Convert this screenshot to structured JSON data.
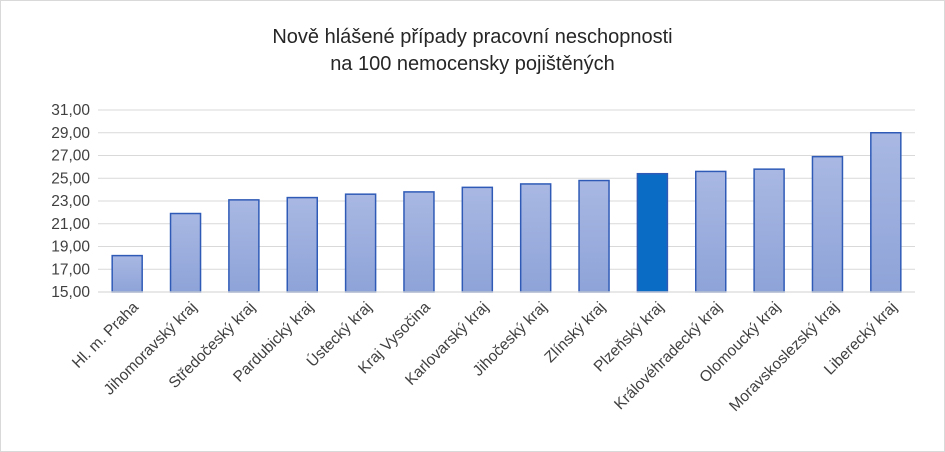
{
  "chart_data": {
    "type": "bar",
    "title": "Nově hlášené případy pracovní neschopnosti",
    "subtitle": "na 100 nemocensky pojištěných",
    "categories": [
      "Hl. m. Praha",
      "Jihomoravský kraj",
      "Středočeský kraj",
      "Pardubický kraj",
      "Ústecký kraj",
      "Kraj Vysočina",
      "Karlovarský kraj",
      "Jihočeský kraj",
      "Zlínský kraj",
      "Plzeňský kraj",
      "Královéhradecký kraj",
      "Olomoucký kraj",
      "Moravskoslezský kraj",
      "Liberecký kraj"
    ],
    "values": [
      18.2,
      21.9,
      23.1,
      23.3,
      23.6,
      23.8,
      24.2,
      24.5,
      24.8,
      25.4,
      25.6,
      25.8,
      26.9,
      29.0
    ],
    "ylim": [
      15,
      31
    ],
    "yticks": [
      "15,00",
      "17,00",
      "19,00",
      "21,00",
      "23,00",
      "25,00",
      "27,00",
      "29,00",
      "31,00"
    ],
    "grid": true,
    "legend": "none",
    "highlight_category": "Plzeňský kraj",
    "colors": {
      "bar_top": "#a9b8e3",
      "bar_bottom": "#8ea3d8",
      "bar_border": "#2f5bb7",
      "highlight": "#0b6cc5",
      "grid": "#d9d9d9",
      "text": "#404040"
    }
  }
}
